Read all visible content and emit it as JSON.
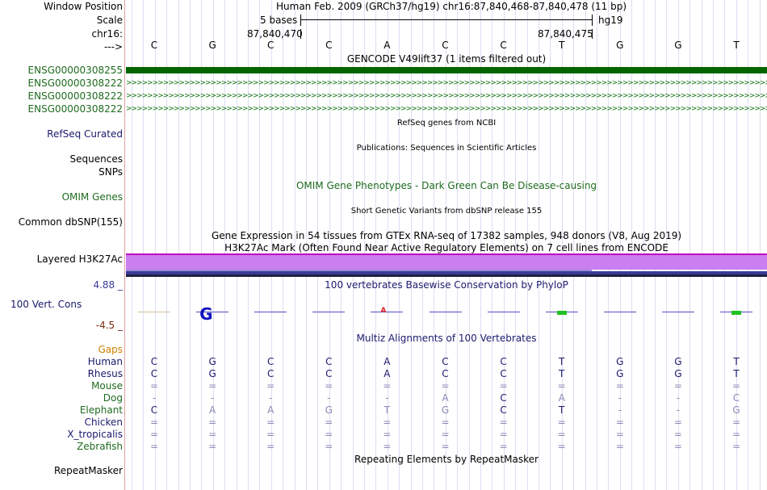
{
  "header": {
    "window_position_label": "Window Position",
    "window_position_value": "Human Feb. 2009 (GRCh37/hg19)   chr16:87,840,468-87,840,478 (11 bp)",
    "scale_label": "Scale",
    "scale_bases": "5 bases",
    "scale_assembly": "hg19",
    "chrom_label": "chr16:",
    "coord_left": "87,840,470",
    "coord_right": "87,840,475",
    "arrow_label": "--->"
  },
  "sequence": [
    "C",
    "G",
    "C",
    "C",
    "A",
    "C",
    "C",
    "T",
    "G",
    "G",
    "T"
  ],
  "gencode": {
    "title": "GENCODE V49lift37 (1 items filtered out)",
    "items": [
      "ENSG00000308255",
      "ENSG00000308222",
      "ENSG00000308222",
      "ENSG00000308222"
    ]
  },
  "refseq": {
    "label": "RefSeq Curated",
    "title": "RefSeq genes from NCBI"
  },
  "publications": {
    "title": "Publications: Sequences in Scientific Articles"
  },
  "sequences_label": "Sequences",
  "snps_label": "SNPs",
  "omim": {
    "label": "OMIM Genes",
    "title": "OMIM Gene Phenotypes - Dark Green Can Be Disease-causing"
  },
  "dbsnp": {
    "label": "Common dbSNP(155)",
    "title": "Short Genetic Variants from dbSNP release 155"
  },
  "gtex": {
    "title": "Gene Expression in 54 tissues from GTEx RNA-seq of 17382 samples, 948 donors (V8, Aug 2019)"
  },
  "h3k27ac": {
    "label": "Layered H3K27Ac",
    "title": "H3K27Ac Mark (Often Found Near Active Regulatory Elements) on 7 cell lines from ENCODE"
  },
  "conservation": {
    "label": "100 Vert. Cons",
    "max": "4.88 _",
    "min": "-4.5 _",
    "title": "100 vertebrates Basewise Conservation by PhyloP"
  },
  "multiz": {
    "title": "Multiz Alignments of 100 Vertebrates",
    "gaps_label": "Gaps",
    "species": [
      {
        "name": "Human",
        "bases": [
          "C",
          "G",
          "C",
          "C",
          "A",
          "C",
          "C",
          "T",
          "G",
          "G",
          "T"
        ]
      },
      {
        "name": "Rhesus",
        "bases": [
          "C",
          "G",
          "C",
          "C",
          "A",
          "C",
          "C",
          "T",
          "G",
          "G",
          "T"
        ]
      },
      {
        "name": "Mouse",
        "bases": [
          "=",
          "=",
          "=",
          "=",
          "=",
          "=",
          "=",
          "=",
          "=",
          "=",
          "="
        ]
      },
      {
        "name": "Dog",
        "bases": [
          "-",
          "-",
          "-",
          "-",
          "-",
          "A",
          "C",
          "A",
          "-",
          "-",
          "C"
        ]
      },
      {
        "name": "Elephant",
        "bases": [
          "C",
          "A",
          "A",
          "G",
          "T",
          "G",
          "C",
          "T",
          "-",
          "-",
          "G"
        ]
      },
      {
        "name": "Chicken",
        "bases": [
          "=",
          "=",
          "=",
          "=",
          "=",
          "=",
          "=",
          "=",
          "=",
          "=",
          "="
        ]
      },
      {
        "name": "X_tropicalis",
        "bases": [
          "=",
          "=",
          "=",
          "=",
          "=",
          "=",
          "=",
          "=",
          "=",
          "=",
          "="
        ]
      },
      {
        "name": "Zebrafish",
        "bases": [
          "=",
          "=",
          "=",
          "=",
          "=",
          "=",
          "=",
          "=",
          "=",
          "=",
          "="
        ]
      }
    ]
  },
  "repeatmasker": {
    "label": "RepeatMasker",
    "title": "Repeating Elements by RepeatMasker"
  },
  "colors": {
    "gene_green": "#006400",
    "label_navy": "#1a1a6e",
    "label_green": "#1f6b1f",
    "gaps_orange": "#d08000",
    "h3k27ac_purple": "#c97ff0",
    "phylop_navy": "#3a3a9a",
    "phylop_brown": "#7a2a0a"
  }
}
